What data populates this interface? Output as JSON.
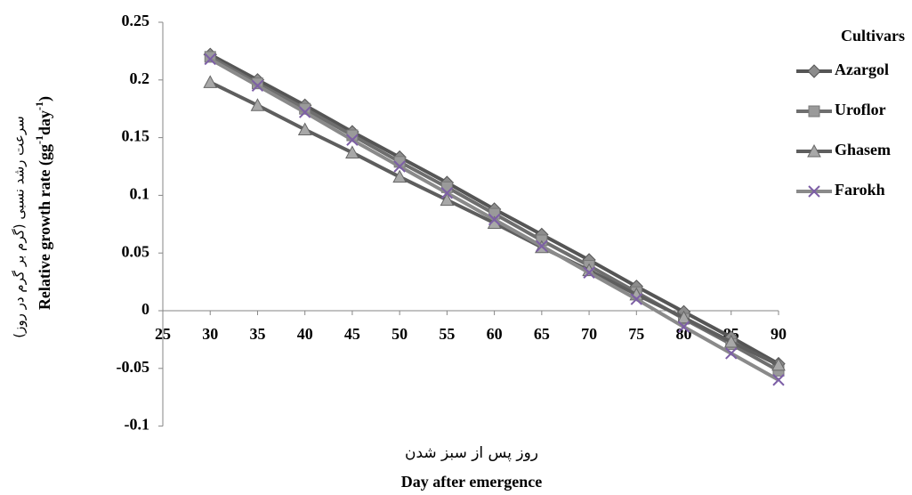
{
  "chart_data": {
    "type": "line",
    "y_label_fa": "سرعت رشد نسبی (گرم بر گرم در روز)",
    "y_label": [
      "Relative growth rate (gg",
      "-1",
      "day",
      "-1",
      ")"
    ],
    "x_label_fa": "روز پس از سبز شدن",
    "x_label": "Day after emergence",
    "legend_title": "Cultivars",
    "legend_position": "right",
    "x": [
      30,
      35,
      40,
      45,
      50,
      55,
      60,
      65,
      70,
      75,
      80,
      85,
      90
    ],
    "xlim": [
      25,
      90
    ],
    "xticks": [
      25,
      30,
      35,
      40,
      45,
      50,
      55,
      60,
      65,
      70,
      75,
      80,
      85,
      90
    ],
    "ylim": [
      -0.1,
      0.25
    ],
    "yticks": [
      -0.1,
      -0.05,
      0,
      0.05,
      0.1,
      0.15,
      0.2,
      0.25
    ],
    "grid": false,
    "series": [
      {
        "name": "Azargol",
        "color": "#555555",
        "marker": "diamond",
        "marker_color": "#8c8c8c",
        "values": [
          0.222,
          0.2,
          0.178,
          0.155,
          0.133,
          0.111,
          0.088,
          0.066,
          0.044,
          0.021,
          -0.001,
          -0.023,
          -0.046
        ]
      },
      {
        "name": "Uroflor",
        "color": "#6e6e6e",
        "marker": "square",
        "marker_color": "#9a9a9a",
        "values": [
          0.22,
          0.197,
          0.175,
          0.152,
          0.129,
          0.107,
          0.084,
          0.061,
          0.039,
          0.016,
          -0.007,
          -0.029,
          -0.052
        ]
      },
      {
        "name": "Ghasem",
        "color": "#5e5e5e",
        "marker": "triangle",
        "marker_color": "#a8a8a8",
        "values": [
          0.198,
          0.178,
          0.157,
          0.137,
          0.116,
          0.096,
          0.076,
          0.055,
          0.035,
          0.014,
          -0.006,
          -0.027,
          -0.047
        ]
      },
      {
        "name": "Farokh",
        "color": "#8a8a8a",
        "marker": "x",
        "marker_color": "#7d5fa6",
        "values": [
          0.218,
          0.195,
          0.172,
          0.148,
          0.125,
          0.102,
          0.079,
          0.056,
          0.033,
          0.01,
          -0.014,
          -0.037,
          -0.06
        ]
      }
    ]
  }
}
